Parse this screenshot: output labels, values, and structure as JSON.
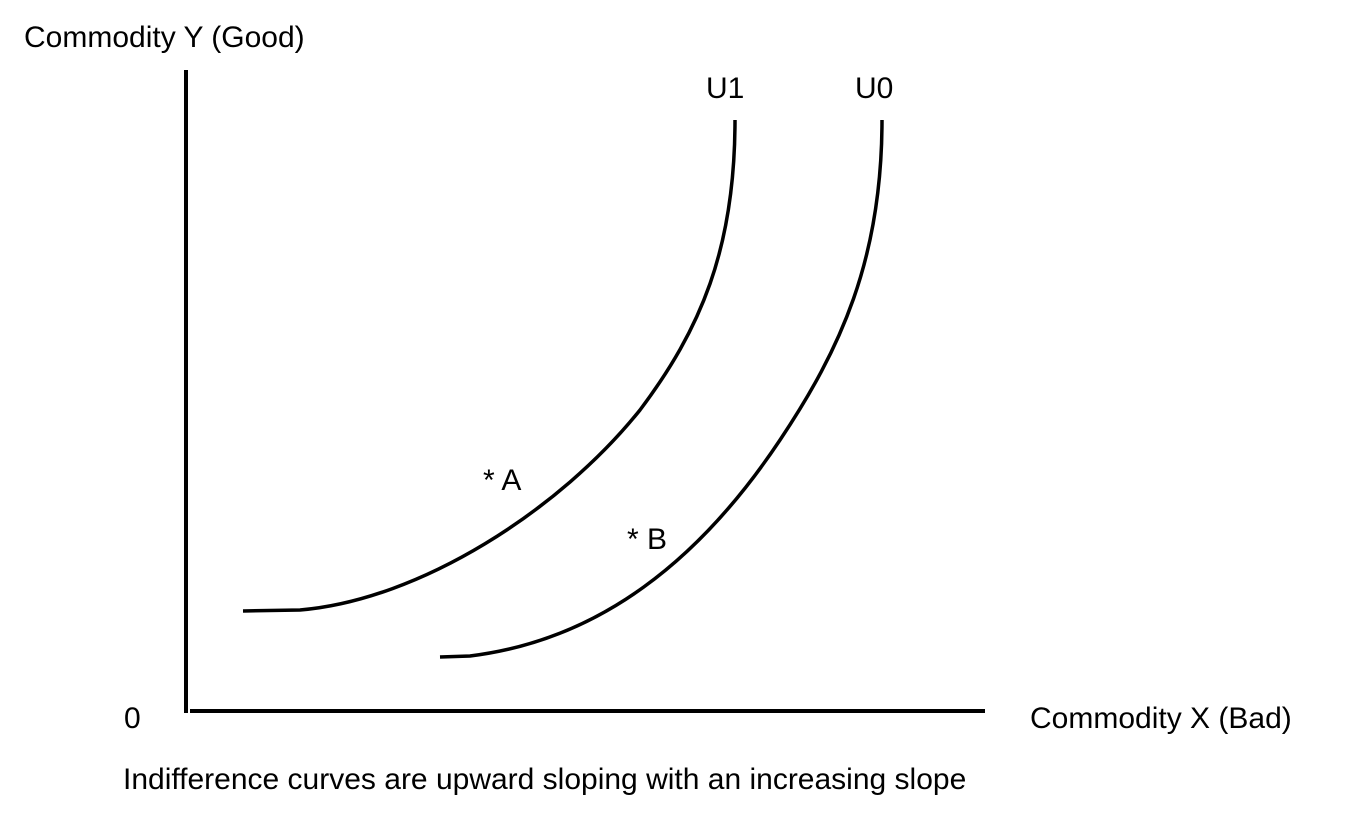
{
  "y_axis_label": "Commodity Y (Good)",
  "x_axis_label": "Commodity X (Bad)",
  "origin_label": "0",
  "curves": [
    {
      "label": "U1"
    },
    {
      "label": "U0"
    }
  ],
  "points": [
    {
      "label": "* A"
    },
    {
      "label": "* B"
    }
  ],
  "caption": "Indifference curves are upward sloping with an increasing slope"
}
